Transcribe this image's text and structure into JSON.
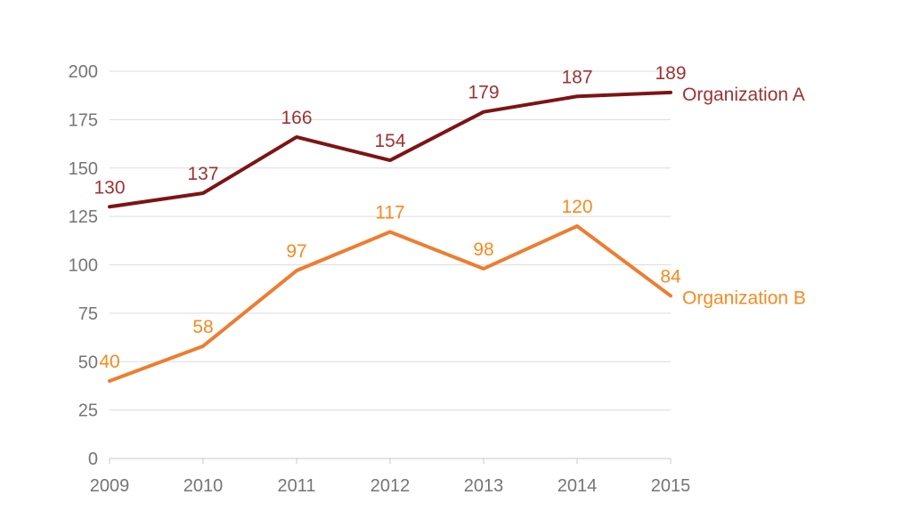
{
  "chart_data": {
    "type": "line",
    "title": "",
    "categories": [
      "2009",
      "2010",
      "2011",
      "2012",
      "2013",
      "2014",
      "2015"
    ],
    "series": [
      {
        "name": "Organization A",
        "values": [
          130,
          137,
          166,
          154,
          179,
          187,
          189
        ],
        "line_color": "#7E1315",
        "label_color": "#9E3234"
      },
      {
        "name": "Organization B",
        "values": [
          40,
          58,
          97,
          117,
          98,
          120,
          84
        ],
        "line_color": "#ED7D31",
        "label_color": "#F78A20"
      }
    ],
    "y_ticks": [
      0,
      25,
      50,
      75,
      100,
      125,
      150,
      175,
      200
    ],
    "ylim": [
      0,
      200
    ],
    "xlabel": "",
    "ylabel": "",
    "grid": true,
    "data_labels": "above-points",
    "legend_position": "right-of-line-end"
  },
  "colors": {
    "background": "#FFFFFF",
    "axis_text": "#757575",
    "gridline": "#DCDCDC",
    "axis_line": "#C9C9C9"
  }
}
